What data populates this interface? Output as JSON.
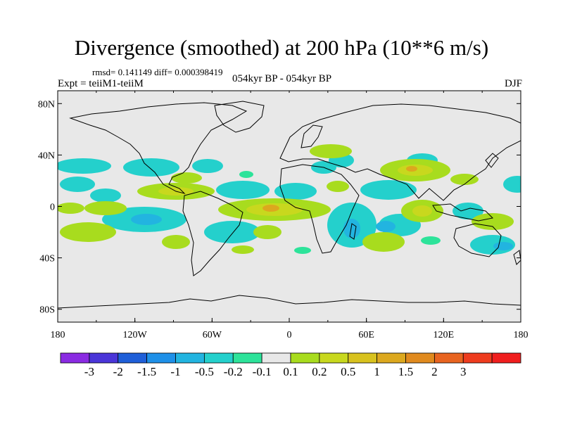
{
  "header": {
    "title": "Divergence (smoothed) at 200 hPa (10**6 m/s)",
    "stats": "rmsd= 0.141149 diff= 0.000398419",
    "experiment": "Expt = teiiM1-teiiM",
    "period": "054kyr BP - 054kyr BP",
    "season": "DJF"
  },
  "map": {
    "lon_ticks": [
      "180",
      "120W",
      "60W",
      "0",
      "60E",
      "120E",
      "180"
    ],
    "lat_ticks": [
      "80N",
      "40N",
      "0",
      "40S",
      "80S"
    ],
    "background_color": "#e8e8e8"
  },
  "colorbar": {
    "colors": [
      "#8a2be2",
      "#4a35d8",
      "#1f5fd8",
      "#1e90e8",
      "#22b4e0",
      "#24d0cc",
      "#2de39a",
      "#e8e8e8",
      "#a8dc1e",
      "#c8d81e",
      "#d8c21e",
      "#dca81e",
      "#e08a1e",
      "#e86420",
      "#ee3c1e",
      "#f01e1e"
    ],
    "labels": [
      "-3",
      "-2",
      "-1.5",
      "-1",
      "-0.5",
      "-0.2",
      "-0.1",
      "0.1",
      "0.2",
      "0.5",
      "1",
      "1.5",
      "2",
      "3"
    ]
  }
}
